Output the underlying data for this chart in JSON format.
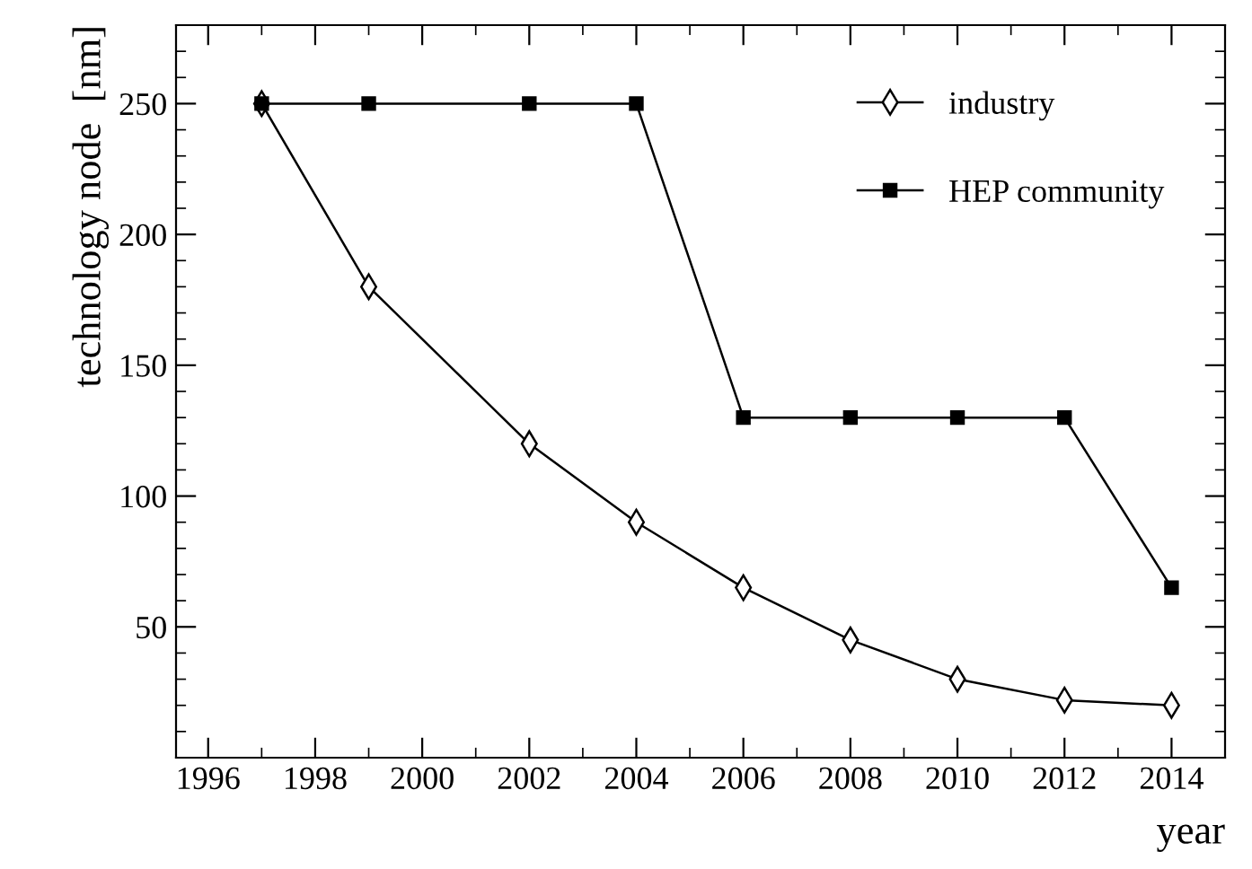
{
  "chart_data": {
    "type": "line",
    "xlabel": "year",
    "ylabel": "technology node  [nm]",
    "series": [
      {
        "name": "industry",
        "color": "#000000",
        "marker": "diamond",
        "x": [
          1997,
          1999,
          2002,
          2004,
          2006,
          2008,
          2010,
          2012,
          2014
        ],
        "values": [
          250,
          180,
          120,
          90,
          65,
          45,
          30,
          22,
          20
        ]
      },
      {
        "name": "HEP community",
        "color": "#000000",
        "marker": "square",
        "x": [
          1997,
          1999,
          2002,
          2004,
          2006,
          2008,
          2010,
          2012,
          2014
        ],
        "values": [
          250,
          250,
          250,
          250,
          130,
          130,
          130,
          130,
          65
        ]
      }
    ],
    "xlim": [
      1995.4,
      2015
    ],
    "xticks": [
      1996,
      1998,
      2000,
      2002,
      2004,
      2006,
      2008,
      2010,
      2012,
      2014
    ],
    "ylim": [
      0,
      280
    ],
    "yticks": [
      50,
      100,
      150,
      200,
      250
    ],
    "legend": "top right",
    "grid": false
  }
}
